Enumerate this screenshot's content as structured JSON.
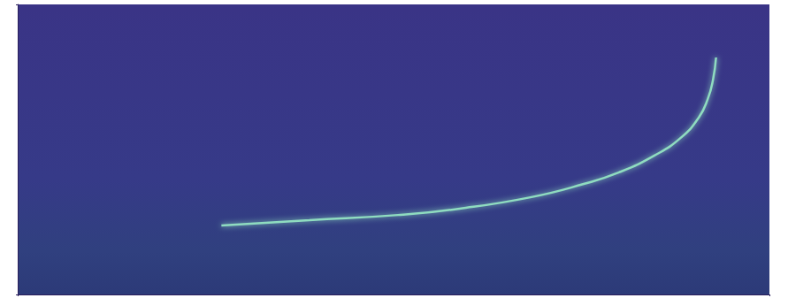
{
  "chart_data": {
    "type": "line",
    "x": [
      27.1,
      38.8,
      50.6,
      58.8,
      68.2,
      75.3,
      80.0,
      84.7,
      88.2,
      90.6,
      91.8,
      92.5,
      92.9
    ],
    "values": [
      23.8,
      25.6,
      27.4,
      29.6,
      33.5,
      38.1,
      42.1,
      47.9,
      54.0,
      61.0,
      67.4,
      74.1,
      81.7
    ],
    "color": "#8fdcc0",
    "xlim": [
      0,
      100
    ],
    "xticks": [
      0,
      100
    ],
    "ylim": [
      0,
      100
    ],
    "yticks": [
      0,
      100
    ],
    "grid": false,
    "tick_labels": false
  }
}
